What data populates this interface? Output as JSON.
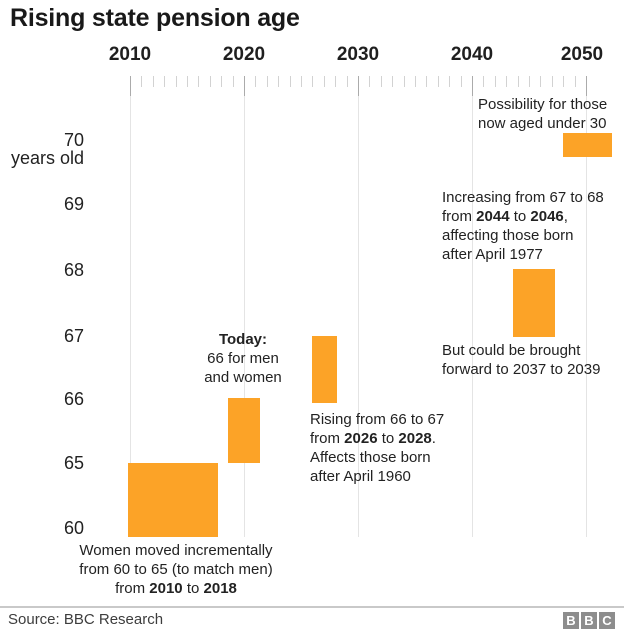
{
  "title": "Rising state pension age",
  "x_axis": {
    "labels": [
      "2010",
      "2020",
      "2030",
      "2040",
      "2050"
    ]
  },
  "y_axis": {
    "labels": {
      "v70": "70",
      "v69": "69",
      "v68": "68",
      "v67": "67",
      "v66": "66",
      "v65": "65",
      "v60": "60"
    },
    "unit_label": "years old"
  },
  "annotations": {
    "possibility": {
      "l1": "Possibility for those",
      "l2": "now aged under 30"
    },
    "increasing": {
      "l1": "Increasing from 67 to 68",
      "l2a": "from ",
      "l2b": "2044",
      "l2c": " to ",
      "l2d": "2046",
      "l2e": ",",
      "l3": "affecting those born",
      "l4": "after April 1977"
    },
    "forward": {
      "l1": "But could be brought",
      "l2": "forward to 2037 to 2039"
    },
    "today": {
      "l1": "Today:",
      "l2": "66 for men",
      "l3": "and women"
    },
    "rising": {
      "l1": "Rising from 66 to 67",
      "l2a": "from ",
      "l2b": "2026",
      "l2c": " to ",
      "l2d": "2028",
      "l2e": ".",
      "l3": "Affects those born",
      "l4": "after April 1960"
    },
    "women": {
      "l1": "Women moved incrementally",
      "l2": "from 60 to 65 (to match men)",
      "l3a": "from ",
      "l3b": "2010",
      "l3c": " to ",
      "l3d": "2018"
    }
  },
  "footer": {
    "source": "Source: BBC Research",
    "logo_letters": {
      "b1": "B",
      "b2": "B",
      "b3": "C"
    }
  },
  "colors": {
    "bar_orange": "#fca327",
    "gridline": "#e4e4e4",
    "text_dark": "#222222",
    "bbc_gray": "#8d8d8d"
  },
  "chart_data": {
    "type": "bar",
    "title": "Rising state pension age",
    "ylabel": "years old",
    "xlabel": "",
    "x_ticks": [
      2010,
      2020,
      2030,
      2040,
      2050
    ],
    "x_minor_tick_step_years": 1,
    "y_ticks": [
      60,
      65,
      66,
      67,
      68,
      69,
      70
    ],
    "y_axis_note": "axis compressed between 60 and 65 (break)",
    "grid": "vertical gridlines at decades",
    "bar_color": "#fca327",
    "bars": [
      {
        "year_start": 2010,
        "year_end": 2018,
        "age_from": 60,
        "age_to": 65,
        "note": "Women moved incrementally from 60 to 65 (to match men) from 2010 to 2018"
      },
      {
        "year_start": 2018,
        "year_end": 2020,
        "age_from": 65,
        "age_to": 66,
        "note": "Today: 66 for men and women"
      },
      {
        "year_start": 2026,
        "year_end": 2028,
        "age_from": 66,
        "age_to": 67,
        "note": "Rising from 66 to 67 from 2026 to 2028. Affects those born after April 1960"
      },
      {
        "year_start": 2044,
        "year_end": 2046,
        "age_from": 67,
        "age_to": 68,
        "note": "Increasing from 67 to 68 from 2044 to 2046, affecting those born after April 1977. But could be brought forward to 2037 to 2039"
      },
      {
        "year_start": 2048,
        "year_end": 2052,
        "age_from": 70,
        "age_to": 70,
        "note": "Possibility for those now aged under 30"
      }
    ]
  }
}
